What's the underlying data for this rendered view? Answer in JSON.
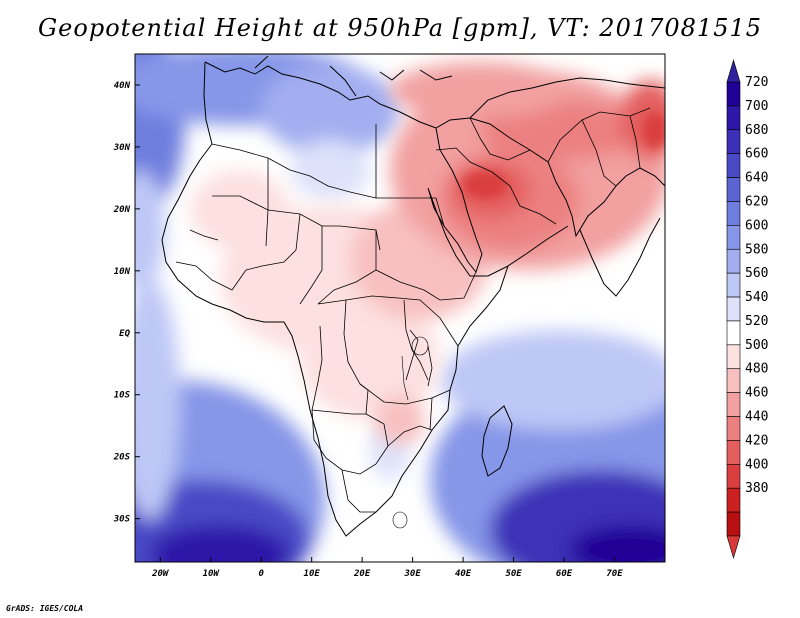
{
  "title": "Geopotential Height at 950hPa [gpm], VT: 2017081515",
  "credit": "GrADS: IGES/COLA",
  "map": {
    "lon_range": [
      -25,
      80
    ],
    "lat_range": [
      -37,
      45
    ],
    "x_ticks": [
      {
        "value": -20,
        "label": "20W"
      },
      {
        "value": -10,
        "label": "10W"
      },
      {
        "value": 0,
        "label": "0"
      },
      {
        "value": 10,
        "label": "10E"
      },
      {
        "value": 20,
        "label": "20E"
      },
      {
        "value": 30,
        "label": "30E"
      },
      {
        "value": 40,
        "label": "40E"
      },
      {
        "value": 50,
        "label": "50E"
      },
      {
        "value": 60,
        "label": "60E"
      },
      {
        "value": 70,
        "label": "70E"
      }
    ],
    "y_ticks": [
      {
        "value": 40,
        "label": "40N"
      },
      {
        "value": 30,
        "label": "30N"
      },
      {
        "value": 20,
        "label": "20N"
      },
      {
        "value": 10,
        "label": "10N"
      },
      {
        "value": 0,
        "label": "EQ"
      },
      {
        "value": -10,
        "label": "10S"
      },
      {
        "value": -20,
        "label": "20S"
      },
      {
        "value": -30,
        "label": "30S"
      }
    ]
  },
  "colorbar": {
    "levels": [
      "720",
      "700",
      "680",
      "660",
      "640",
      "620",
      "600",
      "580",
      "560",
      "540",
      "520",
      "500",
      "480",
      "460",
      "440",
      "420",
      "400",
      "380"
    ],
    "colors": [
      "#200096",
      "#2e16a8",
      "#3c30b8",
      "#4a4ac6",
      "#5a64d2",
      "#6e7ede",
      "#8696e8",
      "#a2aef0",
      "#bec8f6",
      "#dde2fa",
      "#ffffff",
      "#fde0e0",
      "#f8c0c0",
      "#f2a0a0",
      "#ec8080",
      "#e45e5e",
      "#da3e3e",
      "#cc2020",
      "#b81010"
    ]
  },
  "colors": {
    "border": "#000000",
    "high": "#3020a0",
    "low": "#d83838"
  }
}
